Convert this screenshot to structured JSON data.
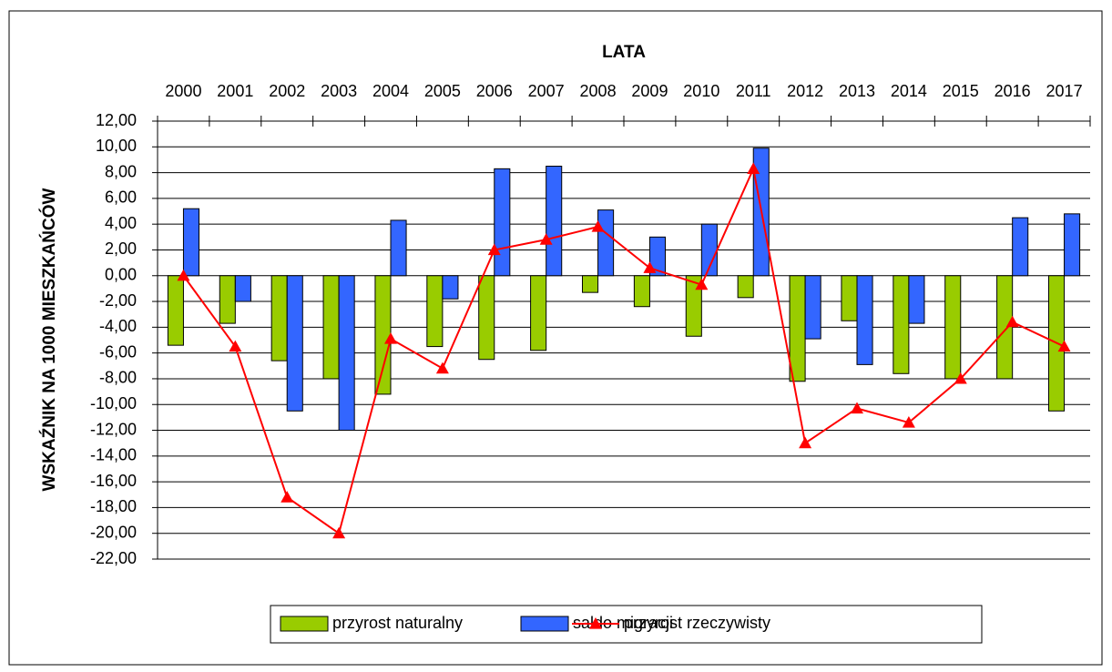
{
  "chart_data": {
    "type": "bar_line",
    "title": "LATA",
    "y_label": "WSKAŹNIK NA 1000 MIESZKAŃCÓW",
    "categories": [
      "2000",
      "2001",
      "2002",
      "2003",
      "2004",
      "2005",
      "2006",
      "2007",
      "2008",
      "2009",
      "2010",
      "2011",
      "2012",
      "2013",
      "2014",
      "2015",
      "2016",
      "2017"
    ],
    "series": [
      {
        "name": "przyrost naturalny",
        "type": "bar",
        "color": "#99cc00",
        "values": [
          -5.4,
          -3.7,
          -6.6,
          -8.0,
          -9.2,
          -5.5,
          -6.5,
          -5.8,
          -1.3,
          -2.4,
          -4.7,
          -1.7,
          -8.2,
          -3.5,
          -7.6,
          -8.0,
          -8.0,
          -10.5
        ]
      },
      {
        "name": "saldo migracji",
        "type": "bar",
        "color": "#3366ff",
        "values": [
          5.2,
          -2.0,
          -10.5,
          -12.0,
          4.3,
          -1.8,
          8.3,
          8.5,
          5.1,
          3.0,
          4.0,
          9.9,
          -4.9,
          -6.9,
          -3.7,
          0,
          4.5,
          4.8
        ]
      },
      {
        "name": "przyrost rzeczywisty",
        "type": "line",
        "color": "#ff0000",
        "values": [
          0,
          -5.5,
          -17.2,
          -20.0,
          -4.9,
          -7.2,
          2.0,
          2.8,
          3.8,
          0.6,
          -0.7,
          8.3,
          -13.0,
          -10.3,
          -11.4,
          -8.0,
          -3.6,
          -5.5
        ]
      }
    ],
    "ylim": [
      -22,
      12
    ],
    "yticks": [
      {
        "value": 12,
        "label": "12,00"
      },
      {
        "value": 10,
        "label": "10,00"
      },
      {
        "value": 8,
        "label": "8,00"
      },
      {
        "value": 6,
        "label": "6,00"
      },
      {
        "value": 4,
        "label": "4,00"
      },
      {
        "value": 2,
        "label": "2,00"
      },
      {
        "value": 0,
        "label": "0,00"
      },
      {
        "value": -2,
        "label": "-2,00"
      },
      {
        "value": -4,
        "label": "-4,00"
      },
      {
        "value": -6,
        "label": "-6,00"
      },
      {
        "value": -8,
        "label": "-8,00"
      },
      {
        "value": -10,
        "label": "-10,00"
      },
      {
        "value": -12,
        "label": "-12,00"
      },
      {
        "value": -14,
        "label": "-14,00"
      },
      {
        "value": -16,
        "label": "-16,00"
      },
      {
        "value": -18,
        "label": "-18,00"
      },
      {
        "value": -20,
        "label": "-20,00"
      },
      {
        "value": -22,
        "label": "-22,00"
      }
    ],
    "grid": true,
    "legend": "bottom"
  }
}
